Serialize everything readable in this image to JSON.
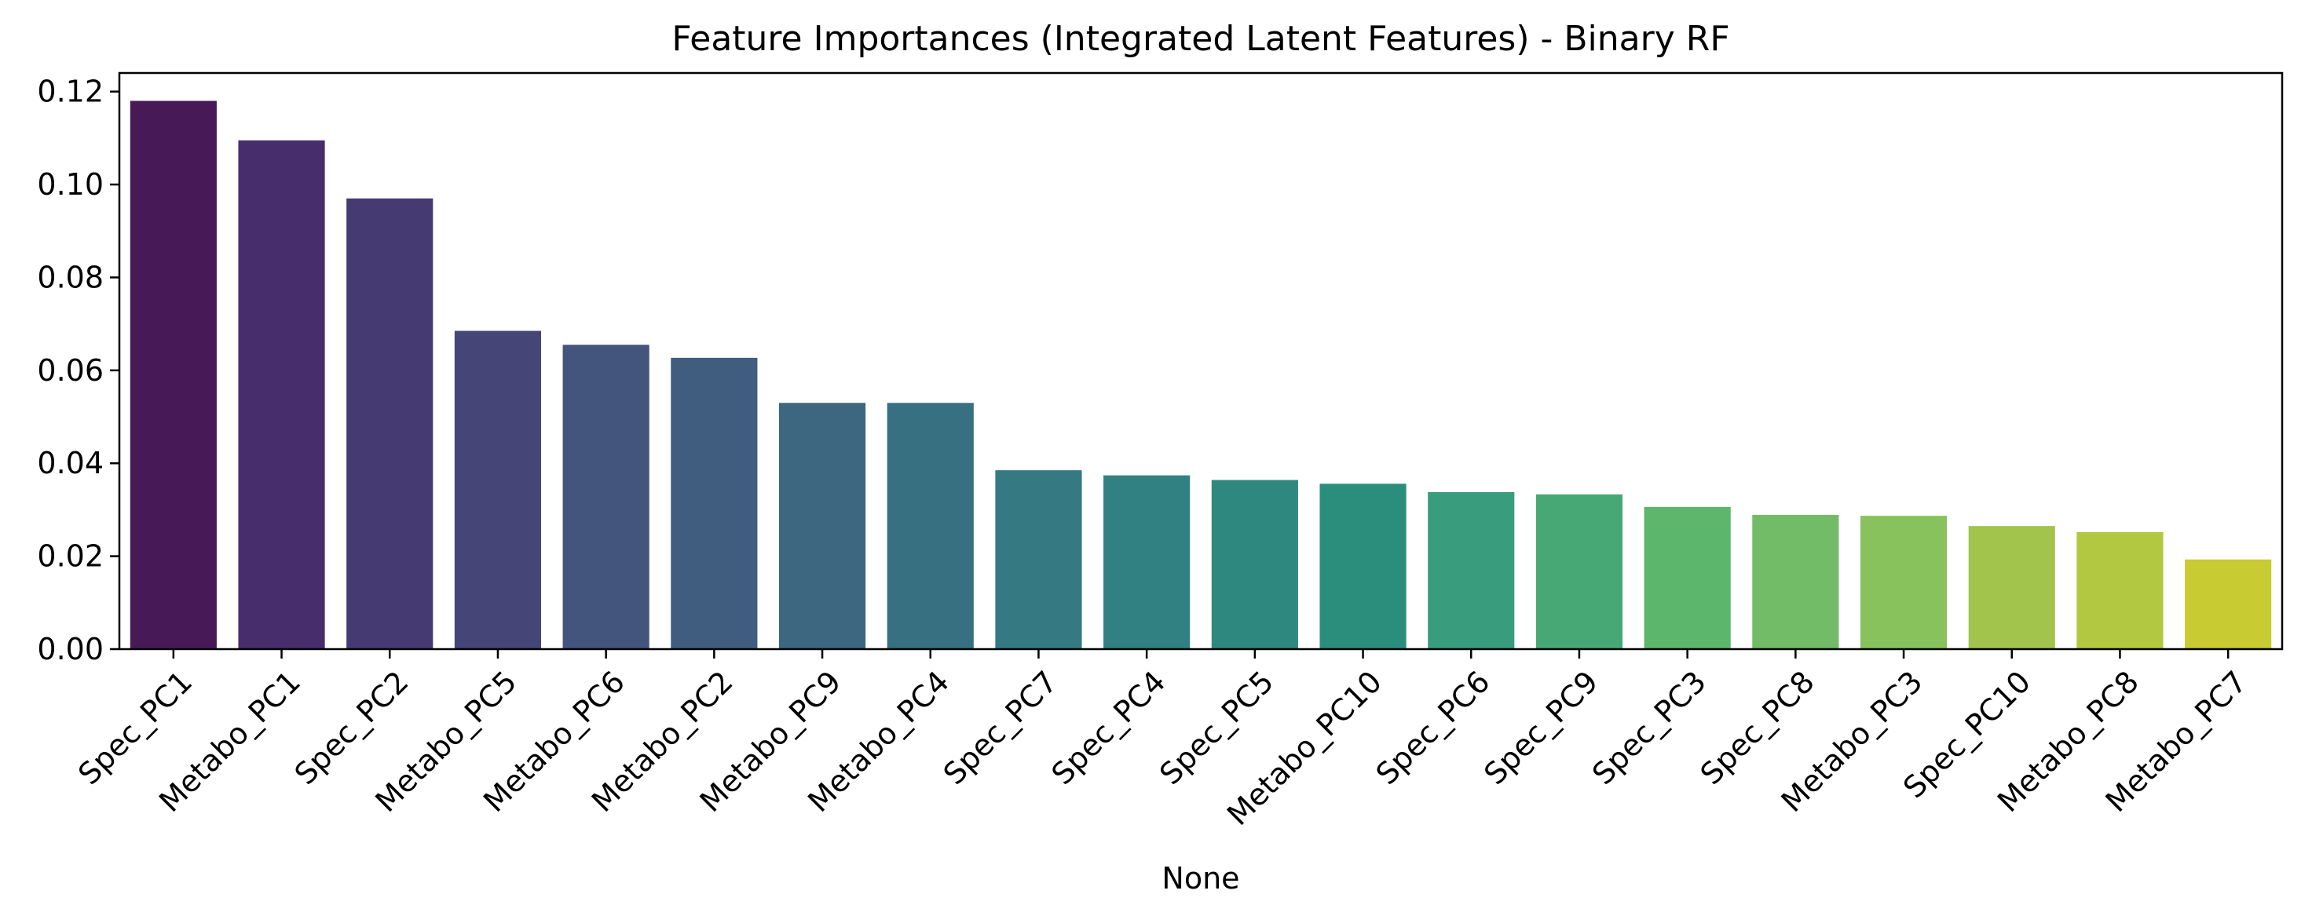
{
  "chart_data": {
    "type": "bar",
    "title": "Feature Importances (Integrated Latent Features) - Binary RF",
    "xlabel": "None",
    "ylabel": "",
    "ylim": [
      0,
      0.124
    ],
    "yticks": [
      "0.00",
      "0.02",
      "0.04",
      "0.06",
      "0.08",
      "0.10",
      "0.12"
    ],
    "grid": false,
    "categories": [
      "Spec_PC1",
      "Metabo_PC1",
      "Spec_PC2",
      "Metabo_PC5",
      "Metabo_PC6",
      "Metabo_PC2",
      "Metabo_PC9",
      "Metabo_PC4",
      "Spec_PC7",
      "Spec_PC4",
      "Spec_PC5",
      "Metabo_PC10",
      "Spec_PC6",
      "Spec_PC9",
      "Spec_PC3",
      "Spec_PC8",
      "Metabo_PC3",
      "Spec_PC10",
      "Metabo_PC8",
      "Metabo_PC7"
    ],
    "values": [
      0.118,
      0.1095,
      0.097,
      0.0685,
      0.0655,
      0.0627,
      0.053,
      0.053,
      0.0385,
      0.0374,
      0.0364,
      0.0356,
      0.0338,
      0.0333,
      0.0306,
      0.0289,
      0.0287,
      0.0265,
      0.0252,
      0.0193
    ],
    "colors": [
      "#471a57",
      "#472d6b",
      "#463a73",
      "#464577",
      "#43547d",
      "#405d80",
      "#3d6680",
      "#377081",
      "#357983",
      "#318183",
      "#2e8880",
      "#2b8e7c",
      "#399c7d",
      "#48a875",
      "#5cb76c",
      "#72bc67",
      "#88c25d",
      "#a2c44c",
      "#b1c840",
      "#c8cb32"
    ]
  }
}
